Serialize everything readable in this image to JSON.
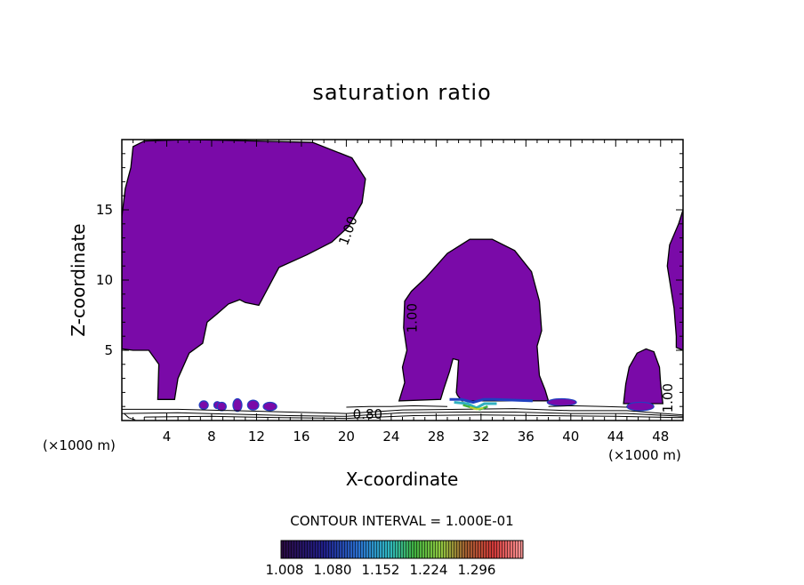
{
  "chart_data": {
    "type": "contour",
    "title": "saturation ratio",
    "xlabel": "X-coordinate",
    "ylabel": "Z-coordinate",
    "x_unit": "(×1000 m)",
    "x_unit_right": "(×1000 m)",
    "xlim": [
      0,
      50
    ],
    "ylim": [
      0,
      20
    ],
    "x_ticks": [
      {
        "value": 4,
        "label": "4"
      },
      {
        "value": 8,
        "label": "8"
      },
      {
        "value": 12,
        "label": "12"
      },
      {
        "value": 16,
        "label": "16"
      },
      {
        "value": 20,
        "label": "20"
      },
      {
        "value": 24,
        "label": "24"
      },
      {
        "value": 28,
        "label": "28"
      },
      {
        "value": 32,
        "label": "32"
      },
      {
        "value": 36,
        "label": "36"
      },
      {
        "value": 40,
        "label": "40"
      },
      {
        "value": 44,
        "label": "44"
      },
      {
        "value": 48,
        "label": "48"
      }
    ],
    "y_ticks": [
      {
        "value": 5,
        "label": "5"
      },
      {
        "value": 10,
        "label": "10"
      },
      {
        "value": 15,
        "label": "15"
      }
    ],
    "contour_interval_text": "CONTOUR INTERVAL = 1.000E-01",
    "contour_labels": [
      {
        "text": "1.00",
        "x": 20.2,
        "y": 13.5,
        "angle": -70
      },
      {
        "text": "1.00",
        "x": 25.9,
        "y": 7.3,
        "angle": -90
      },
      {
        "text": "0.80",
        "x": 21.9,
        "y": 0.4,
        "angle": 0
      },
      {
        "text": "1.00",
        "x": 48.7,
        "y": 1.6,
        "angle": -90
      }
    ],
    "colorbar": {
      "tick_labels": [
        "1.008",
        "1.080",
        "1.152",
        "1.224",
        "1.296"
      ],
      "colors": [
        "#3a0a4a",
        "#1a1a9a",
        "#2a6ad0",
        "#30c0c0",
        "#40b040",
        "#a0d040",
        "#b07030",
        "#d04040",
        "#ff9090"
      ]
    },
    "regions": [
      {
        "name": "left-cloud",
        "color": "#7a0aa8",
        "points": [
          [
            0,
            14.5
          ],
          [
            0.3,
            16.5
          ],
          [
            0.8,
            18
          ],
          [
            1,
            19.5
          ],
          [
            2,
            19.9
          ],
          [
            6,
            20
          ],
          [
            12,
            19.9
          ],
          [
            17,
            19.8
          ],
          [
            20.5,
            18.7
          ],
          [
            21.7,
            17.2
          ],
          [
            21.4,
            15.5
          ],
          [
            20.2,
            13.8
          ],
          [
            18.7,
            12.7
          ],
          [
            16.5,
            11.8
          ],
          [
            14,
            10.9
          ],
          [
            12.2,
            8.2
          ],
          [
            11,
            8.4
          ],
          [
            10.5,
            8.6
          ],
          [
            9.5,
            8.3
          ],
          [
            8.5,
            7.6
          ],
          [
            7.6,
            7
          ],
          [
            7.2,
            5.5
          ],
          [
            6,
            4.8
          ],
          [
            5,
            3
          ],
          [
            4.7,
            1.5
          ],
          [
            3.2,
            1.5
          ],
          [
            3.3,
            4
          ],
          [
            2.4,
            5
          ],
          [
            1,
            5
          ],
          [
            0,
            5.1
          ]
        ]
      },
      {
        "name": "center-cloud",
        "color": "#7a0aa8",
        "points": [
          [
            24.7,
            1.4
          ],
          [
            25.2,
            2.7
          ],
          [
            25,
            3.8
          ],
          [
            25.4,
            5
          ],
          [
            25.1,
            6.6
          ],
          [
            25.2,
            8.5
          ],
          [
            25.8,
            9.2
          ],
          [
            27,
            10.1
          ],
          [
            29,
            11.9
          ],
          [
            31,
            12.9
          ],
          [
            33,
            12.9
          ],
          [
            35,
            12.1
          ],
          [
            36.5,
            10.6
          ],
          [
            37.2,
            8.5
          ],
          [
            37.4,
            6.4
          ],
          [
            37,
            5.3
          ],
          [
            37.2,
            3.2
          ],
          [
            37.7,
            2.2
          ],
          [
            38,
            1.4
          ],
          [
            32,
            1.4
          ],
          [
            30.3,
            1.4
          ],
          [
            29.9,
            1.8
          ],
          [
            29.8,
            2
          ],
          [
            29.9,
            3
          ],
          [
            30,
            4.3
          ],
          [
            29.5,
            4.4
          ],
          [
            29.2,
            3.5
          ],
          [
            28.7,
            2.3
          ],
          [
            28.4,
            1.5
          ]
        ]
      },
      {
        "name": "right-edge-cloud",
        "color": "#7a0aa8",
        "points": [
          [
            50,
            15
          ],
          [
            49.6,
            14
          ],
          [
            48.8,
            12.5
          ],
          [
            48.6,
            11
          ],
          [
            48.9,
            9.5
          ],
          [
            49.2,
            8
          ],
          [
            49.4,
            6
          ],
          [
            49.4,
            5.2
          ],
          [
            50,
            5
          ]
        ]
      },
      {
        "name": "right-small-cloud",
        "color": "#7a0aa8",
        "points": [
          [
            44.7,
            1.2
          ],
          [
            44.9,
            2.6
          ],
          [
            45.2,
            3.8
          ],
          [
            45.9,
            4.8
          ],
          [
            46.7,
            5.1
          ],
          [
            47.4,
            4.9
          ],
          [
            47.9,
            3.8
          ],
          [
            48,
            2.6
          ],
          [
            48.2,
            1.2
          ]
        ]
      }
    ],
    "small_patches": [
      {
        "x": 7.3,
        "y": 1.1,
        "rx": 0.4,
        "ry": 0.3,
        "color": "#7a0aa8"
      },
      {
        "x": 8.5,
        "y": 1.1,
        "rx": 0.3,
        "ry": 0.25,
        "color": "#7a0aa8"
      },
      {
        "x": 8.9,
        "y": 1.0,
        "rx": 0.4,
        "ry": 0.3,
        "color": "#7a0aa8"
      },
      {
        "x": 10.3,
        "y": 1.1,
        "rx": 0.4,
        "ry": 0.45,
        "color": "#7a0aa8"
      },
      {
        "x": 11.7,
        "y": 1.1,
        "rx": 0.5,
        "ry": 0.35,
        "color": "#7a0aa8"
      },
      {
        "x": 13.2,
        "y": 1.0,
        "rx": 0.6,
        "ry": 0.3,
        "color": "#7a0aa8"
      },
      {
        "x": 39.2,
        "y": 1.3,
        "rx": 1.3,
        "ry": 0.25,
        "color": "#7a0aa8"
      },
      {
        "x": 46.2,
        "y": 1.0,
        "rx": 1.2,
        "ry": 0.3,
        "color": "#7a0aa8"
      }
    ],
    "band_polylines": [
      {
        "color": "#2040c0",
        "width": 3,
        "points": [
          [
            29.2,
            1.5
          ],
          [
            30.3,
            1.5
          ],
          [
            31.3,
            1.3
          ],
          [
            32.2,
            1.5
          ],
          [
            33.2,
            1.5
          ],
          [
            36.6,
            1.4
          ]
        ]
      },
      {
        "color": "#30b0c0",
        "width": 3,
        "points": [
          [
            29.6,
            1.3
          ],
          [
            30.8,
            1.2
          ],
          [
            31.6,
            0.9
          ],
          [
            32.3,
            1.2
          ],
          [
            33.4,
            1.2
          ]
        ]
      },
      {
        "color": "#40b040",
        "width": 2.5,
        "points": [
          [
            30.4,
            1.1
          ],
          [
            31.3,
            0.9
          ],
          [
            31.9,
            0.8
          ],
          [
            32.6,
            1.0
          ]
        ]
      },
      {
        "color": "#c0d030",
        "width": 2,
        "points": [
          [
            31.0,
            0.95
          ],
          [
            31.6,
            0.8
          ],
          [
            32.2,
            0.9
          ]
        ]
      }
    ],
    "contour_lines": [
      [
        [
          0,
          0.8
        ],
        [
          5,
          0.8
        ],
        [
          10,
          0.7
        ],
        [
          15,
          0.6
        ],
        [
          20,
          0.5
        ],
        [
          25,
          0.75
        ],
        [
          30,
          0.8
        ],
        [
          35,
          0.85
        ],
        [
          40,
          0.7
        ],
        [
          45,
          0.7
        ],
        [
          50,
          0.4
        ]
      ],
      [
        [
          0,
          0.5
        ],
        [
          5,
          0.55
        ],
        [
          10,
          0.45
        ],
        [
          15,
          0.35
        ],
        [
          20,
          0.3
        ],
        [
          25,
          0.55
        ],
        [
          30,
          0.6
        ],
        [
          35,
          0.6
        ],
        [
          40,
          0.5
        ],
        [
          45,
          0.5
        ],
        [
          50,
          0.3
        ]
      ],
      [
        [
          2,
          0.25
        ],
        [
          8,
          0.3
        ],
        [
          14,
          0.2
        ],
        [
          20,
          0.15
        ],
        [
          26,
          0.35
        ],
        [
          32,
          0.4
        ],
        [
          38,
          0.35
        ],
        [
          44,
          0.3
        ],
        [
          50,
          0.2
        ]
      ],
      [
        [
          20,
          0.95
        ],
        [
          22,
          1.0
        ],
        [
          24,
          1.0
        ],
        [
          26,
          1.05
        ],
        [
          29,
          1.0
        ]
      ],
      [
        [
          38,
          1.0
        ],
        [
          40,
          1.05
        ],
        [
          43,
          1.0
        ],
        [
          45,
          0.95
        ]
      ],
      [
        [
          0.2,
          0.5
        ],
        [
          0.6,
          0.2
        ],
        [
          1.2,
          0.05
        ]
      ]
    ]
  }
}
